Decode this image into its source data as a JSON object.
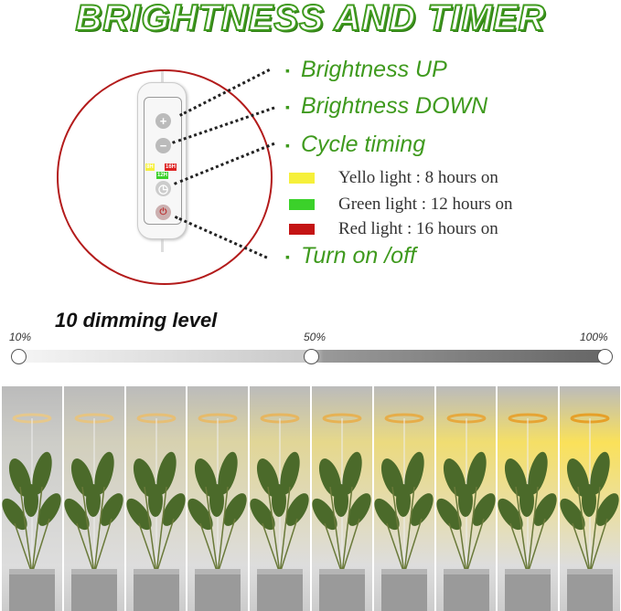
{
  "title": "BRIGHTNESS AND TIMER",
  "remote": {
    "tags": [
      "8H",
      "16H",
      "12H"
    ],
    "icons": [
      "plus-icon",
      "minus-icon",
      "timer-icon",
      "power-icon"
    ]
  },
  "features": [
    {
      "label": "Brightness UP"
    },
    {
      "label": "Brightness DOWN"
    },
    {
      "label": "Cycle timing"
    },
    {
      "label": "Turn on /off"
    }
  ],
  "bullet": "▪",
  "timers": [
    {
      "label": "Yello light : 8 hours on",
      "color": "#f6f03a"
    },
    {
      "label": "Green light : 12 hours on",
      "color": "#3bd12a"
    },
    {
      "label": "Red light : 16 hours on",
      "color": "#c41414"
    }
  ],
  "dimming": {
    "title": "10 dimming level",
    "labels": [
      "10%",
      "50%",
      "100%"
    ],
    "levels": [
      10,
      20,
      30,
      40,
      50,
      60,
      70,
      80,
      90,
      100
    ]
  },
  "colors": {
    "title_green": "#3f9a1e",
    "circle_red": "#b31b1b"
  }
}
